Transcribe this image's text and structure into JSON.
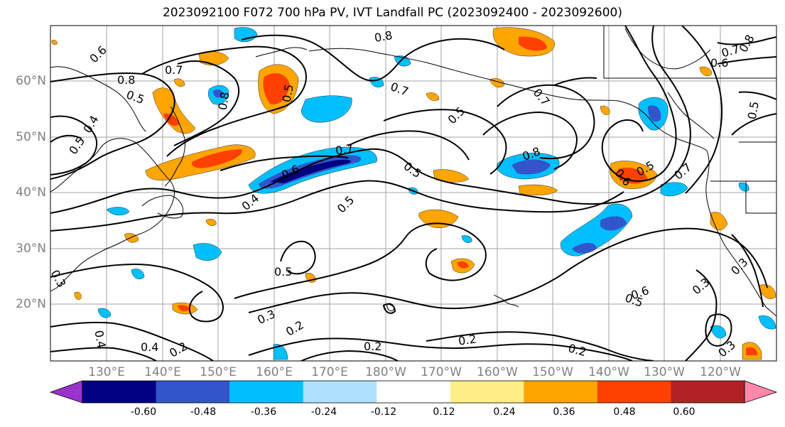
{
  "title": "2023092100 F072 700 hPa PV, IVT Landfall PC (2023092400 - 2023092600)",
  "map": {
    "lat_labels": [
      "60°N",
      "50°N",
      "40°N",
      "30°N",
      "20°N"
    ],
    "lon_labels": [
      "130°E",
      "140°E",
      "150°E",
      "160°E",
      "170°E",
      "180°W",
      "170°W",
      "160°W",
      "150°W",
      "140°W",
      "130°W",
      "120°W"
    ],
    "contour_labels": [
      "0.8",
      "0.6",
      "0.7",
      "0.8",
      "0.5",
      "0.8",
      "0.5",
      "0.4",
      "0.5",
      "0.7",
      "0.6",
      "0.7",
      "0.5",
      "0.4",
      "0.5",
      "0.7",
      "0.5",
      "0.8",
      "0.6",
      "0.5",
      "0.7",
      "0.5",
      "0.3",
      "0.2",
      "0.4",
      "0.2",
      "0.4",
      "0.3",
      "0.2",
      "0.2",
      "0.2",
      "0.5",
      "0.6",
      "0.3",
      "0.3",
      "0.8",
      "0.7",
      "0.6",
      "0.5",
      "0.3"
    ],
    "colors": {
      "coast": "#000000",
      "grid": "#a0a0a0",
      "contour": "#000000"
    }
  },
  "colorbar": {
    "levels": [
      "-0.60",
      "-0.48",
      "-0.36",
      "-0.24",
      "-0.12",
      "0.12",
      "0.24",
      "0.36",
      "0.48",
      "0.60"
    ],
    "colors": [
      "#9933cc",
      "#000080",
      "#3355cc",
      "#00bfff",
      "#b0e0ff",
      "#ffffff",
      "#ffee88",
      "#ffa500",
      "#ff4000",
      "#b22222",
      "#ff88aa"
    ]
  }
}
